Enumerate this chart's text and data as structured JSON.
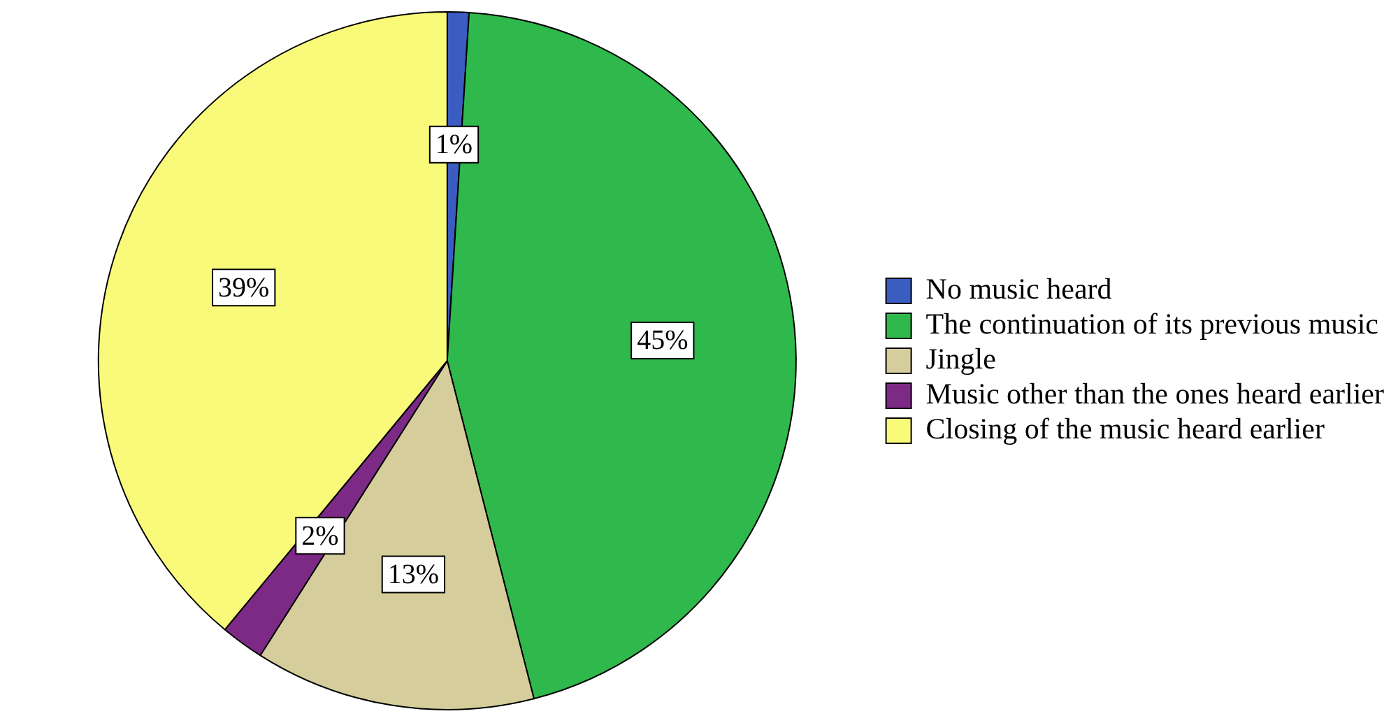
{
  "chart_data": {
    "type": "pie",
    "categories": [
      "No music heard",
      "The continuation of its previous music",
      "Jingle",
      "Music other than the ones heard earlier",
      "Closing of the music heard earlier"
    ],
    "values": [
      1,
      45,
      13,
      2,
      39
    ],
    "colors": [
      "#3b5cc0",
      "#2fb84b",
      "#d5cd9b",
      "#7d2a86",
      "#fafa7a"
    ],
    "value_labels": [
      "1%",
      "45%",
      "13%",
      "2%",
      "39%"
    ],
    "legend": "right"
  }
}
